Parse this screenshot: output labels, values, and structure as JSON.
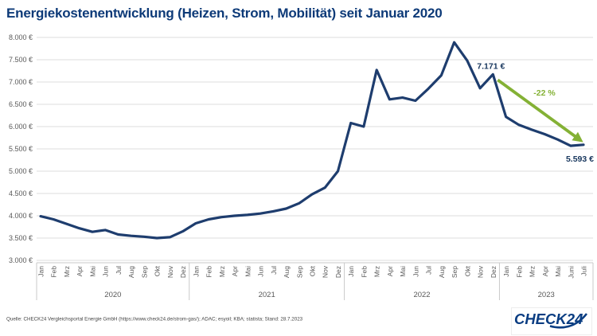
{
  "title": "Energiekostenentwicklung (Heizen, Strom, Mobilität) seit Januar 2020",
  "source": "Quelle: CHECK24 Vergleichsportal Energie GmbH (https://www.check24.de/strom-gas/); ADAC; esyoil; KBA; statista; Stand: 28.7.2023",
  "logo_text": "CHECK24",
  "colors": {
    "title_navy": "#0d3a78",
    "line_navy": "#1e3d6e",
    "annotation_navy": "#17365d",
    "green": "#84b135",
    "grid": "#dcdcdc",
    "axis_line": "#c9c9c9",
    "axis_text": "#595959",
    "logo_navy": "#0a3d82"
  },
  "annotations": {
    "peak_label": "7.171 €",
    "peak_index": 35,
    "change_label": "-22 %",
    "end_label": "5.593 €",
    "end_index": 42
  },
  "chart_data": {
    "type": "line",
    "title": "Energiekostenentwicklung (Heizen, Strom, Mobilität) seit Januar 2020",
    "xlabel": "",
    "ylabel": "",
    "unit": "EUR",
    "ylim": [
      3000,
      8000
    ],
    "ytick_step": 500,
    "ytick_labels": [
      "3.000 €",
      "3.500 €",
      "4.000 €",
      "4.500 €",
      "5.000 €",
      "5.500 €",
      "6.000 €",
      "6.500 €",
      "7.000 €",
      "7.500 €",
      "8.000 €"
    ],
    "grid": true,
    "legend": "none",
    "years": [
      {
        "label": "2020",
        "months": [
          "Jan",
          "Feb",
          "Mrz",
          "Apr",
          "Mai",
          "Jun",
          "Jul",
          "Aug",
          "Sep",
          "Okt",
          "Nov",
          "Dez"
        ],
        "values": [
          3990,
          3920,
          3820,
          3720,
          3640,
          3680,
          3580,
          3550,
          3530,
          3500,
          3520,
          3650
        ]
      },
      {
        "label": "2021",
        "months": [
          "Jan",
          "Feb",
          "Mrz",
          "Apr",
          "Mai",
          "Jun",
          "Jul",
          "Aug",
          "Sep",
          "Okt",
          "Nov",
          "Dez"
        ],
        "values": [
          3830,
          3920,
          3970,
          4000,
          4020,
          4050,
          4100,
          4160,
          4280,
          4480,
          4630,
          5000
        ]
      },
      {
        "label": "2022",
        "months": [
          "Jan",
          "Feb",
          "Mrz",
          "Apr",
          "Mai",
          "Jun",
          "Jul",
          "Aug",
          "Sep",
          "Okt",
          "Nov",
          "Dez"
        ],
        "values": [
          6080,
          6000,
          7270,
          6610,
          6650,
          6580,
          6850,
          7150,
          7890,
          7480,
          6860,
          7171
        ]
      },
      {
        "label": "2023",
        "months": [
          "Jan",
          "Feb",
          "Mrz",
          "Apr",
          "Mai",
          "Juni",
          "Juli"
        ],
        "values": [
          6220,
          6040,
          5930,
          5830,
          5710,
          5570,
          5593
        ]
      }
    ]
  }
}
